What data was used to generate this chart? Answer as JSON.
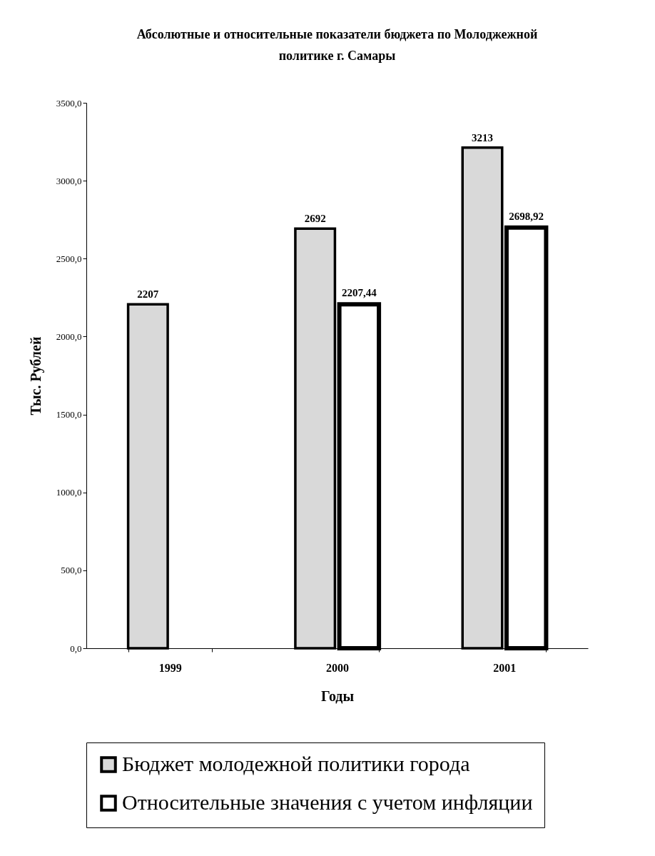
{
  "chart_data": {
    "type": "bar",
    "title": "Абсолютные и относительные показатели бюджета по Молоджежной политике г. Самары",
    "xlabel": "Годы",
    "ylabel": "Тыс. Рублей",
    "categories": [
      "1999",
      "2000",
      "2001"
    ],
    "series": [
      {
        "name": "Бюджет молодежной политики города",
        "color": "#d9d9d9",
        "values": [
          2207,
          2692,
          3213
        ],
        "value_labels": [
          "2207",
          "2692",
          "3213"
        ]
      },
      {
        "name": "Относительные значения с учетом инфляции",
        "color": "#ffffff",
        "values": [
          null,
          2207.44,
          2698.92
        ],
        "value_labels": [
          null,
          "2207,44",
          "2698,92"
        ]
      }
    ],
    "ylim": [
      0,
      3500
    ],
    "yticks": [
      {
        "value": 0,
        "label": "0,0"
      },
      {
        "value": 500,
        "label": "500,0"
      },
      {
        "value": 1000,
        "label": "1000,0"
      },
      {
        "value": 1500,
        "label": "1500,0"
      },
      {
        "value": 2000,
        "label": "2000,0"
      },
      {
        "value": 2500,
        "label": "2500,0"
      },
      {
        "value": 3000,
        "label": "3000,0"
      },
      {
        "value": 3500,
        "label": "3500,0"
      }
    ],
    "grid": false,
    "legend": "bottom"
  }
}
